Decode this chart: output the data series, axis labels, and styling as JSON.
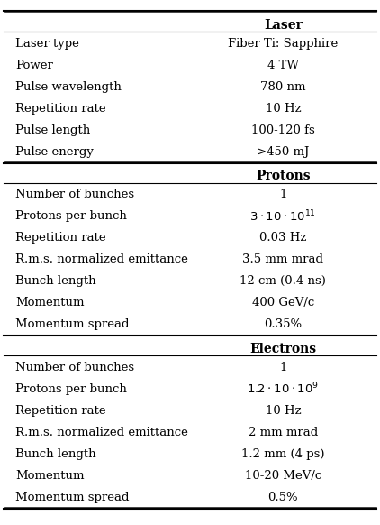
{
  "sections": [
    {
      "header": "Laser",
      "rows": [
        [
          "Laser type",
          "Fiber Ti: Sapphire"
        ],
        [
          "Power",
          "4 TW"
        ],
        [
          "Pulse wavelength",
          "780 nm"
        ],
        [
          "Repetition rate",
          "10 Hz"
        ],
        [
          "Pulse length",
          "100-120 fs"
        ],
        [
          "Pulse energy",
          ">450 mJ"
        ]
      ]
    },
    {
      "header": "Protons",
      "rows": [
        [
          "Number of bunches",
          "1"
        ],
        [
          "Protons per bunch",
          "3·10$^{11}$"
        ],
        [
          "Repetition rate",
          "0.03 Hz"
        ],
        [
          "R.m.s. normalized emittance",
          "3.5 mm mrad"
        ],
        [
          "Bunch length",
          "12 cm (0.4 ns)"
        ],
        [
          "Momentum",
          "400 GeV/c"
        ],
        [
          "Momentum spread",
          "0.35%"
        ]
      ]
    },
    {
      "header": "Electrons",
      "rows": [
        [
          "Number of bunches",
          "1"
        ],
        [
          "Protons per bunch",
          "1.2·10$^{9}$"
        ],
        [
          "Repetition rate",
          "10 Hz"
        ],
        [
          "R.m.s. normalized emittance",
          "2 mm mrad"
        ],
        [
          "Bunch length",
          "1.2 mm (4 ps)"
        ],
        [
          "Momentum",
          "10-20 MeV/c"
        ],
        [
          "Momentum spread",
          "0.5%"
        ]
      ]
    }
  ],
  "bg_color": "#ffffff",
  "header_line_color": "#000000",
  "font_size": 9.5,
  "header_font_size": 10.0
}
